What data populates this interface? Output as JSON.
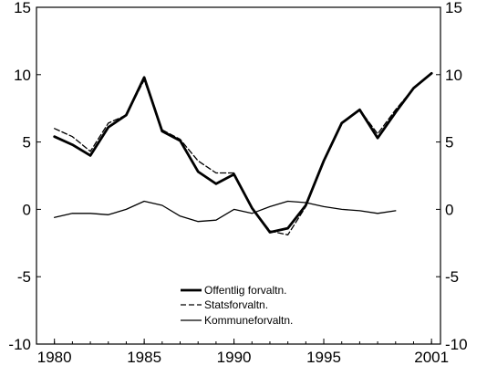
{
  "chart_data": {
    "type": "line",
    "title": "",
    "xlabel": "",
    "ylabel": "",
    "xlim": [
      1979,
      2001.5
    ],
    "ylim": [
      -10,
      15
    ],
    "x_ticks": [
      1980,
      1985,
      1990,
      1995,
      2001
    ],
    "y_ticks": [
      15,
      10,
      5,
      0,
      -5,
      -10
    ],
    "y_tick_labels_left": [
      "15",
      "10",
      "5",
      "0",
      "-5",
      "-10"
    ],
    "y_tick_labels_right": [
      "15",
      "10",
      "5",
      "0",
      "-5",
      "-10"
    ],
    "grid": false,
    "legend_position": "bottom-center",
    "series": [
      {
        "name": "Offentlig forvaltn.",
        "style": "thick-solid",
        "color": "#000000",
        "x": [
          1980,
          1981,
          1982,
          1983,
          1984,
          1985,
          1986,
          1987,
          1988,
          1989,
          1990,
          1991,
          1992,
          1993,
          1994,
          1995,
          1996,
          1997,
          1998,
          1999,
          2000,
          2001
        ],
        "values": [
          5.4,
          4.8,
          4.0,
          6.1,
          7.0,
          9.8,
          5.8,
          5.1,
          2.8,
          1.9,
          2.6,
          0.1,
          -1.7,
          -1.4,
          0.3,
          3.6,
          6.4,
          7.4,
          5.3,
          7.2,
          9.0,
          10.1
        ]
      },
      {
        "name": "Statsforvaltn.",
        "style": "dashed",
        "color": "#000000",
        "x": [
          1980,
          1981,
          1982,
          1983,
          1984,
          1985,
          1986,
          1987,
          1988,
          1989,
          1990,
          1991,
          1992,
          1993,
          1994,
          1995,
          1996,
          1997,
          1998,
          1999,
          2000,
          2001
        ],
        "values": [
          6.0,
          5.4,
          4.3,
          6.4,
          7.0,
          9.6,
          5.9,
          5.2,
          3.6,
          2.7,
          2.7,
          0.1,
          -1.6,
          -1.9,
          0.2,
          3.6,
          6.4,
          7.4,
          5.6,
          7.4,
          9.0,
          10.1
        ]
      },
      {
        "name": "Kommuneforvaltn.",
        "style": "thin-solid",
        "color": "#000000",
        "x": [
          1980,
          1981,
          1982,
          1983,
          1984,
          1985,
          1986,
          1987,
          1988,
          1989,
          1990,
          1991,
          1992,
          1993,
          1994,
          1995,
          1996,
          1997,
          1998,
          1999
        ],
        "values": [
          -0.6,
          -0.3,
          -0.3,
          -0.4,
          0.0,
          0.6,
          0.3,
          -0.5,
          -0.9,
          -0.8,
          0.0,
          -0.3,
          0.2,
          0.6,
          0.5,
          0.2,
          0.0,
          -0.1,
          -0.3,
          -0.1
        ]
      }
    ]
  }
}
